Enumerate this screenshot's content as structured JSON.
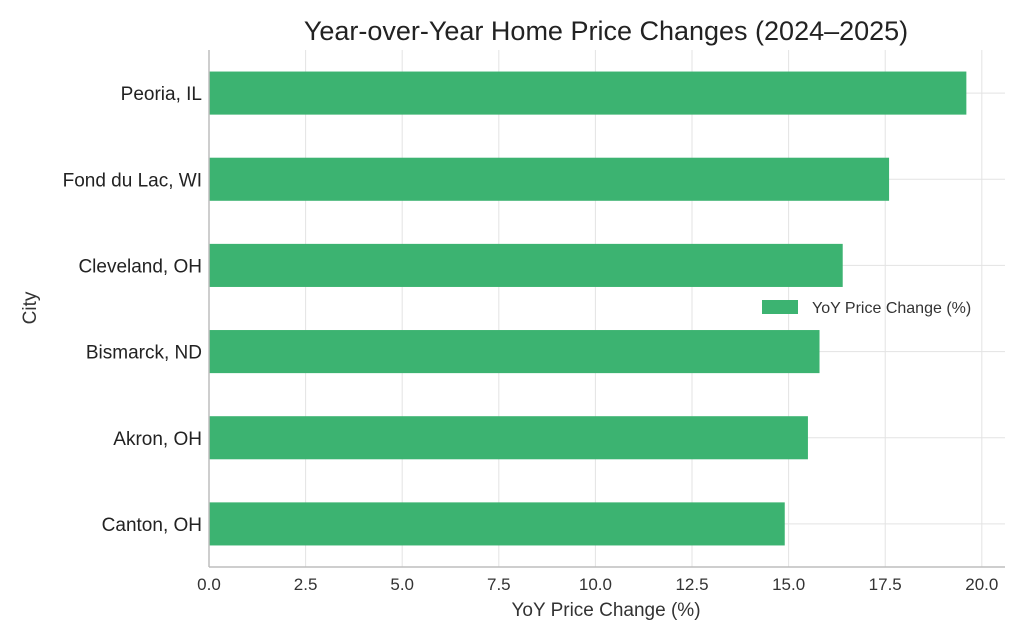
{
  "chart_data": {
    "type": "bar",
    "orientation": "horizontal",
    "title": "Year-over-Year Home Price Changes (2024–2025)",
    "xlabel": "YoY Price Change (%)",
    "ylabel": "City",
    "categories": [
      "Peoria, IL",
      "Fond du Lac, WI",
      "Cleveland, OH",
      "Bismarck, ND",
      "Akron, OH",
      "Canton, OH"
    ],
    "series": [
      {
        "name": "YoY Price Change (%)",
        "values": [
          19.6,
          17.6,
          16.4,
          15.8,
          15.5,
          14.9
        ]
      }
    ],
    "xlim": [
      0,
      20.6
    ],
    "xticks": [
      "0.0",
      "2.5",
      "5.0",
      "7.5",
      "10.0",
      "12.5",
      "15.0",
      "17.5",
      "20.0"
    ],
    "xtick_values": [
      0,
      2.5,
      5,
      7.5,
      10,
      12.5,
      15,
      17.5,
      20
    ],
    "grid": true,
    "legend_position": "center-right",
    "colors": {
      "bar": "#3cb371",
      "grid": "#e3e3e3",
      "axis": "#bdbdbd"
    }
  }
}
